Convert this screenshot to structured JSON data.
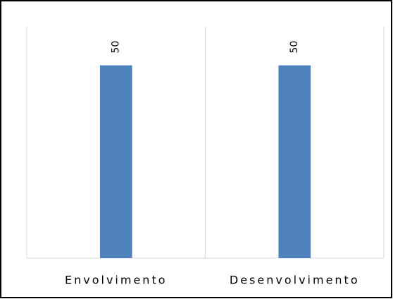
{
  "chart_data": {
    "type": "bar",
    "categories": [
      "Envolvimento",
      "Desenvolvimento"
    ],
    "values": [
      50,
      50
    ],
    "color": "#4f81bd",
    "ylim": [
      0,
      60
    ]
  }
}
